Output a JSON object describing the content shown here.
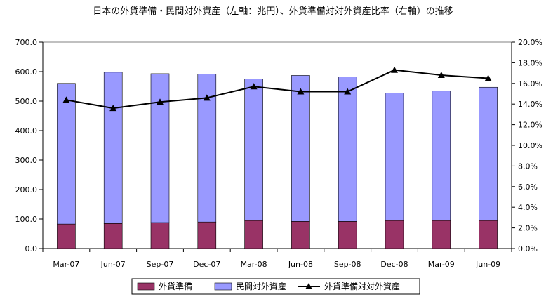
{
  "chart_data": {
    "type": "bar",
    "title": "日本の外貨準備・民間対外資産（左軸：兆円）、外貨準備対対外資産比率（右軸）の推移",
    "categories": [
      "Mar-07",
      "Jun-07",
      "Sep-07",
      "Dec-07",
      "Mar-08",
      "Jun-08",
      "Sep-08",
      "Dec-08",
      "Mar-09",
      "Jun-09"
    ],
    "stacked": true,
    "series": [
      {
        "name": "外貨準備",
        "type": "bar",
        "axis": "left",
        "color": "#993366",
        "values": [
          83,
          85,
          88,
          90,
          95,
          92,
          92,
          95,
          95,
          95
        ]
      },
      {
        "name": "民間対外資産",
        "type": "bar",
        "axis": "left",
        "color": "#9999ff",
        "values": [
          477,
          513,
          505,
          502,
          480,
          495,
          490,
          432,
          439,
          452
        ]
      },
      {
        "name": "外貨準備対対外資産",
        "type": "line",
        "axis": "right",
        "color": "#000000",
        "marker": "triangle",
        "values": [
          14.4,
          13.6,
          14.2,
          14.6,
          15.7,
          15.2,
          15.2,
          17.3,
          16.8,
          16.5
        ]
      }
    ],
    "y_left": {
      "min": 0,
      "max": 700,
      "step": 100,
      "tick_labels": [
        "0.0",
        "100.0",
        "200.0",
        "300.0",
        "400.0",
        "500.0",
        "600.0",
        "700.0"
      ]
    },
    "y_right": {
      "min": 0,
      "max": 20,
      "step": 2,
      "tick_labels": [
        "0.0%",
        "2.0%",
        "4.0%",
        "6.0%",
        "8.0%",
        "10.0%",
        "12.0%",
        "14.0%",
        "16.0%",
        "18.0%",
        "20.0%"
      ]
    },
    "grid": false,
    "legend_position": "bottom"
  }
}
